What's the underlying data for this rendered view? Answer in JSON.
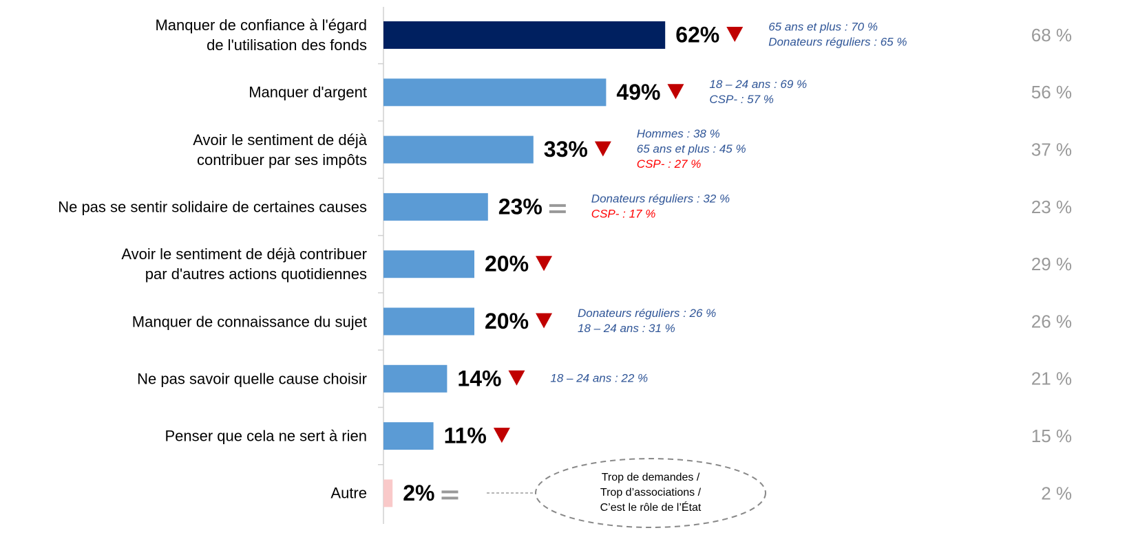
{
  "chart_data": {
    "type": "bar",
    "orientation": "horizontal",
    "categories": [
      "Manquer de confiance à l'égard\nde l'utilisation des fonds",
      "Manquer d'argent",
      "Avoir le sentiment de déjà\ncontribuer par ses impôts ",
      "Ne pas se sentir solidaire de certaines causes",
      "Avoir le sentiment de déjà contribuer\npar d'autres actions quotidiennes",
      "Manquer de connaissance du sujet",
      "Ne pas savoir quelle cause choisir",
      "Penser que cela ne sert à rien",
      "Autre"
    ],
    "series": [
      {
        "values": [
          62,
          49,
          33,
          23,
          20,
          20,
          14,
          11,
          2
        ],
        "value_labels": [
          "62%",
          "49%",
          "33%",
          "23%",
          "20%",
          "20%",
          "14%",
          "11%",
          "2%"
        ],
        "colors": [
          "#002060",
          "#5b9bd5",
          "#5b9bd5",
          "#5b9bd5",
          "#5b9bd5",
          "#5b9bd5",
          "#5b9bd5",
          "#5b9bd5",
          "#f9c9c9"
        ],
        "trend": [
          "down",
          "down",
          "down",
          "equal",
          "down",
          "down",
          "down",
          "down",
          "equal"
        ]
      },
      {
        "values": [
          68,
          56,
          37,
          23,
          29,
          26,
          21,
          15,
          2
        ],
        "value_labels": [
          "68 %",
          "56 %",
          "37 %",
          "23 %",
          "29 %",
          "26 %",
          "21 %",
          "15 %",
          "2 %"
        ],
        "color": "#999999"
      }
    ],
    "annotations": [
      [
        {
          "text": "65 ans et plus : 70 %",
          "color": "#2f5597"
        },
        {
          "text": "Donateurs réguliers : 65 %",
          "color": "#2f5597"
        }
      ],
      [
        {
          "text": "18 – 24 ans : 69 %",
          "color": "#2f5597"
        },
        {
          "text": "CSP- : 57 %",
          "color": "#2f5597"
        }
      ],
      [
        {
          "text": "Hommes : 38 %",
          "color": "#2f5597"
        },
        {
          "text": "65 ans et plus : 45 %",
          "color": "#2f5597"
        },
        {
          "text": "CSP- : 27 %",
          "color": "#ff0000"
        }
      ],
      [
        {
          "text": "Donateurs réguliers : 32 %",
          "color": "#2f5597"
        },
        {
          "text": "CSP- : 17 %",
          "color": "#ff0000"
        }
      ],
      [],
      [
        {
          "text": "Donateurs réguliers : 26 %",
          "color": "#2f5597"
        },
        {
          "text": "18 – 24 ans : 31 %",
          "color": "#2f5597"
        }
      ],
      [
        {
          "text": "18 – 24 ans : 22 %",
          "color": "#2f5597"
        }
      ],
      [],
      []
    ],
    "callout": "Trop de demandes /\nTrop d’associations /\nC’est le rôle de l’État"
  }
}
